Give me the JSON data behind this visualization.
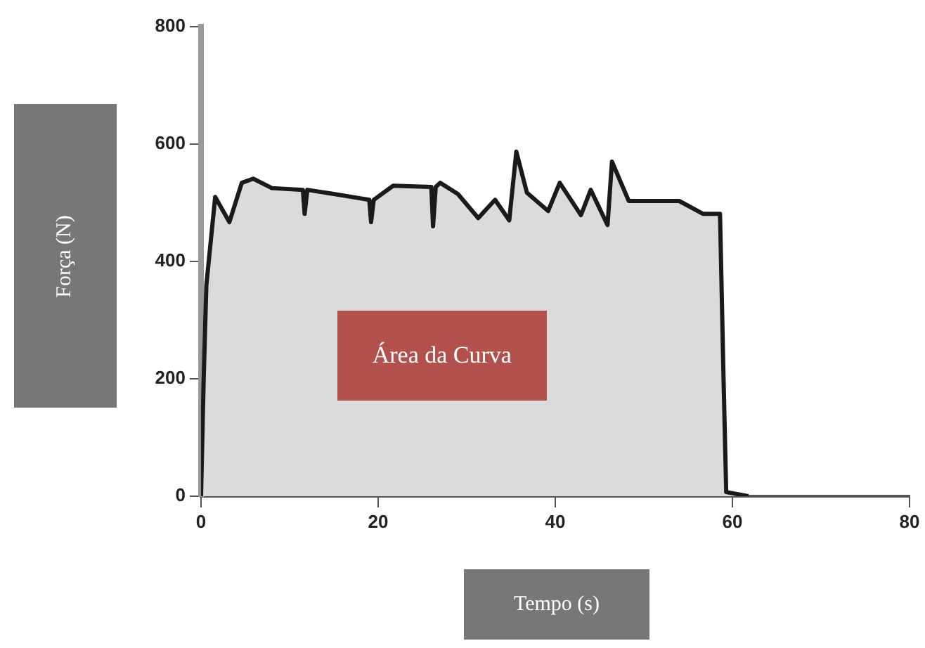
{
  "chart_data": {
    "type": "area",
    "xlabel": "Tempo (s)",
    "ylabel": "Força (N)",
    "annotations": [
      "Área da Curva"
    ],
    "x": [
      0,
      0.3,
      0.6,
      1.0,
      1.6,
      3.2,
      4.6,
      5.9,
      8.0,
      11.5,
      11.7,
      12.0,
      15.0,
      19.0,
      19.2,
      19.5,
      21.7,
      26.0,
      26.2,
      26.5,
      27.0,
      29.0,
      31.3,
      33.2,
      34.8,
      35.6,
      36.8,
      39.2,
      40.5,
      42.9,
      44.0,
      45.9,
      46.4,
      48.3,
      54.0,
      56.7,
      58.6,
      59.0,
      59.3,
      61.8
    ],
    "series": [
      {
        "color": "#1a1a1a",
        "values": [
          0,
          200,
          359,
          420,
          510,
          467,
          534,
          541,
          525,
          522,
          481,
          522,
          515,
          505,
          467,
          505,
          529,
          527,
          460,
          527,
          534,
          515,
          474,
          505,
          470,
          587,
          517,
          486,
          534,
          479,
          522,
          462,
          570,
          503,
          503,
          481,
          481,
          200,
          7,
          0
        ]
      }
    ],
    "xlim": [
      0,
      80
    ],
    "xticks": [
      0,
      20,
      40,
      60,
      80
    ],
    "ylim": [
      0,
      800
    ],
    "yticks": [
      0,
      200,
      400,
      600,
      800
    ],
    "grid": false,
    "legend": false,
    "marker": "none",
    "line_style": "solid"
  }
}
